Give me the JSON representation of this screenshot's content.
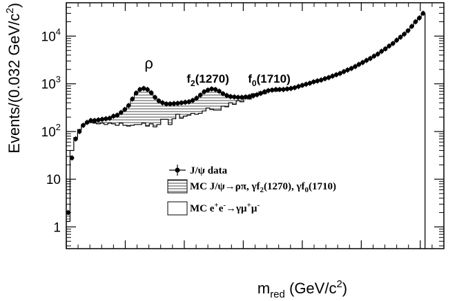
{
  "chart_data": {
    "type": "line",
    "xlabel": {
      "main": "m",
      "sub": "red",
      "rest": " (GeV/c",
      "sup": "2",
      "close": ")"
    },
    "ylabel": {
      "main": "Events/(0.032 GeV/c",
      "sup": "2",
      "close": ")"
    },
    "xlim": [
      0,
      3.2
    ],
    "ylim": [
      0.35,
      50000
    ],
    "log_y": true,
    "x_ticks": [
      {
        "value": 0,
        "label": "0"
      },
      {
        "value": 0.5,
        "label": "0.5"
      },
      {
        "value": 1,
        "label": "1"
      },
      {
        "value": 1.5,
        "label": "1.5"
      },
      {
        "value": 2,
        "label": "2"
      },
      {
        "value": 2.5,
        "label": "2.5"
      },
      {
        "value": 3,
        "label": "3"
      }
    ],
    "y_ticks": [
      {
        "value": 1,
        "label": "1"
      },
      {
        "value": 10,
        "label": "10"
      },
      {
        "value": 100,
        "label": "10",
        "sup": "2"
      },
      {
        "value": 1000,
        "label": "10",
        "sup": "3"
      },
      {
        "value": 10000,
        "label": "10",
        "sup": "4"
      }
    ],
    "grid": false,
    "legend_position": "center",
    "peak_labels": [
      {
        "x": 0.7,
        "y": 2100,
        "text": "ρ"
      },
      {
        "x": 1.2,
        "y": 1050,
        "text": "f",
        "sub": "2",
        "rest": "(1270)"
      },
      {
        "x": 1.72,
        "y": 1050,
        "text": "f",
        "sub": "0",
        "rest": "(1710)"
      }
    ],
    "legend": [
      {
        "marker": "data",
        "label": "J/ψ data"
      },
      {
        "marker": "hatched",
        "label": "MC J/ψ→ρπ, γf",
        "sub1": "2",
        "mid": "(1270), γf",
        "sub2": "0",
        "end": "(1710)"
      },
      {
        "marker": "open",
        "label": "MC e",
        "sup1": "+",
        "p1": "e",
        "sup2": "-",
        "p2": "→γμ",
        "sup3": "+",
        "p3": "μ",
        "sup4": "-"
      }
    ],
    "series": [
      {
        "name": "J/ψ data",
        "type": "points",
        "x": [
          0.016,
          0.048,
          0.08,
          0.112,
          0.144,
          0.176,
          0.208,
          0.24,
          0.272,
          0.304,
          0.336,
          0.368,
          0.4,
          0.432,
          0.464,
          0.496,
          0.528,
          0.56,
          0.592,
          0.624,
          0.656,
          0.688,
          0.72,
          0.752,
          0.784,
          0.816,
          0.848,
          0.88,
          0.912,
          0.944,
          0.976,
          1.008,
          1.04,
          1.072,
          1.104,
          1.136,
          1.168,
          1.2,
          1.232,
          1.264,
          1.296,
          1.328,
          1.36,
          1.392,
          1.424,
          1.456,
          1.488,
          1.52,
          1.552,
          1.584,
          1.616,
          1.648,
          1.68,
          1.712,
          1.744,
          1.776,
          1.808,
          1.84,
          1.872,
          1.904,
          1.936,
          1.968,
          2.0,
          2.032,
          2.064,
          2.096,
          2.128,
          2.16,
          2.192,
          2.224,
          2.256,
          2.288,
          2.32,
          2.352,
          2.384,
          2.416,
          2.448,
          2.48,
          2.512,
          2.544,
          2.576,
          2.608,
          2.64,
          2.672,
          2.704,
          2.736,
          2.768,
          2.8,
          2.832,
          2.864,
          2.896,
          2.928,
          2.96,
          2.992,
          3.024
        ],
        "y": [
          2,
          28,
          70,
          100,
          135,
          155,
          170,
          170,
          175,
          180,
          185,
          190,
          210,
          220,
          250,
          290,
          350,
          480,
          640,
          760,
          800,
          760,
          650,
          520,
          440,
          400,
          380,
          380,
          385,
          390,
          400,
          410,
          420,
          450,
          500,
          580,
          680,
          740,
          780,
          760,
          700,
          620,
          570,
          540,
          530,
          520,
          520,
          530,
          540,
          560,
          590,
          630,
          680,
          720,
          740,
          760,
          760,
          760,
          780,
          800,
          830,
          880,
          930,
          980,
          1030,
          1100,
          1150,
          1200,
          1280,
          1350,
          1450,
          1550,
          1650,
          1800,
          1950,
          2100,
          2300,
          2550,
          2800,
          3100,
          3400,
          3800,
          4200,
          4800,
          5400,
          6200,
          7000,
          8200,
          9500,
          11000,
          13000,
          16000,
          20000,
          24000,
          30000
        ]
      },
      {
        "name": "MC J/ψ→ρπ, γf2(1270), γf0(1710)",
        "type": "hatched-histogram",
        "bin_width": 0.032,
        "x": [
          0.0,
          0.032,
          0.064,
          0.096,
          0.128,
          0.16,
          0.192,
          0.224,
          0.256,
          0.288,
          0.32,
          0.352,
          0.384,
          0.416,
          0.448,
          0.48,
          0.512,
          0.544,
          0.576,
          0.608,
          0.64,
          0.672,
          0.704,
          0.736,
          0.768,
          0.8,
          0.832,
          0.864,
          0.896,
          0.928,
          0.96,
          0.992,
          1.024,
          1.056,
          1.088,
          1.12,
          1.152,
          1.184,
          1.216,
          1.248,
          1.28,
          1.312,
          1.344,
          1.376,
          1.408,
          1.44,
          1.472,
          1.504,
          1.536,
          1.568,
          1.6,
          1.632,
          1.664,
          1.696,
          1.728,
          1.76,
          1.792,
          1.824,
          1.856,
          1.888,
          1.92,
          1.952,
          1.984,
          2.016,
          2.048,
          2.08,
          2.112,
          2.144,
          2.176,
          2.208,
          2.24,
          2.272,
          2.304,
          2.336,
          2.368,
          2.4,
          2.432,
          2.464,
          2.496,
          2.528,
          2.56,
          2.592,
          2.624,
          2.656,
          2.688,
          2.72,
          2.752,
          2.784,
          2.816,
          2.848,
          2.88,
          2.912,
          2.944,
          2.976,
          3.008
        ],
        "y": [
          2,
          28,
          70,
          100,
          135,
          155,
          170,
          170,
          175,
          180,
          185,
          190,
          210,
          220,
          250,
          290,
          350,
          480,
          640,
          760,
          800,
          760,
          650,
          520,
          440,
          400,
          380,
          380,
          385,
          390,
          400,
          410,
          420,
          450,
          500,
          580,
          680,
          740,
          780,
          760,
          700,
          620,
          570,
          540,
          530,
          520,
          520,
          530,
          540,
          560,
          590,
          630,
          680,
          720,
          740,
          760,
          760,
          760,
          780,
          800,
          830,
          880,
          930,
          980,
          1030,
          1100,
          1150,
          1200,
          1280,
          1350,
          1450,
          1550,
          1650,
          1800,
          1950,
          2100,
          2300,
          2550,
          2800,
          3100,
          3400,
          3800,
          4200,
          4800,
          5400,
          6200,
          7000,
          8200,
          9500,
          11000,
          13000,
          16000,
          20000,
          24000,
          30000
        ]
      },
      {
        "name": "MC e+e-→γμ+μ-",
        "type": "open-histogram",
        "bin_width": 0.032,
        "x": [
          0.0,
          0.032,
          0.064,
          0.096,
          0.128,
          0.16,
          0.192,
          0.224,
          0.256,
          0.288,
          0.32,
          0.352,
          0.384,
          0.416,
          0.448,
          0.48,
          0.512,
          0.544,
          0.576,
          0.608,
          0.64,
          0.672,
          0.704,
          0.736,
          0.768,
          0.8,
          0.832,
          0.864,
          0.896,
          0.928,
          0.96,
          0.992,
          1.024,
          1.056,
          1.088,
          1.12,
          1.152,
          1.184,
          1.216,
          1.248,
          1.28,
          1.312,
          1.344,
          1.376,
          1.408,
          1.44,
          1.472,
          1.504,
          1.536,
          1.568,
          1.6,
          1.632,
          1.664,
          1.696,
          1.728,
          1.76,
          1.792,
          1.824,
          1.856,
          1.888,
          1.92,
          1.952,
          1.984,
          2.016,
          2.048,
          2.08,
          2.112,
          2.144,
          2.176,
          2.208,
          2.24,
          2.272,
          2.304,
          2.336,
          2.368,
          2.4,
          2.432,
          2.464,
          2.496,
          2.528,
          2.56,
          2.592,
          2.624,
          2.656,
          2.688,
          2.72,
          2.752,
          2.784,
          2.816,
          2.848,
          2.88,
          2.912,
          2.944,
          2.976,
          3.008
        ],
        "y": [
          1.3,
          40,
          75,
          110,
          140,
          150,
          155,
          150,
          145,
          150,
          140,
          150,
          145,
          135,
          150,
          135,
          130,
          135,
          140,
          140,
          150,
          130,
          145,
          125,
          140,
          180,
          180,
          140,
          185,
          230,
          190,
          210,
          220,
          240,
          230,
          240,
          270,
          310,
          290,
          280,
          280,
          340,
          330,
          400,
          370,
          440,
          420,
          500,
          480,
          620,
          580,
          680,
          620,
          710,
          720,
          700,
          760,
          780,
          760,
          820,
          830,
          870,
          920,
          970,
          1020,
          1080,
          1140,
          1200,
          1280,
          1350,
          1450,
          1550,
          1650,
          1800,
          1950,
          2100,
          2300,
          2550,
          2800,
          3100,
          3400,
          3800,
          4200,
          4800,
          5400,
          6200,
          7000,
          8200,
          9500,
          11000,
          13000,
          16000,
          20000,
          24000,
          30000
        ]
      }
    ]
  }
}
